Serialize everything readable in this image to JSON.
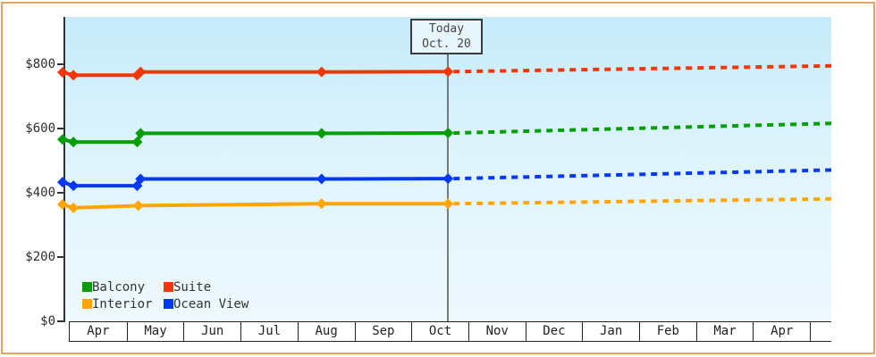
{
  "page": {
    "border_color": "#e2a55f",
    "background_color": "#ffffff",
    "plot_gradient_top": "#c6ebfa",
    "plot_gradient_bottom": "#edf9fe"
  },
  "today_marker": {
    "title": "Today",
    "date": "Oct. 20"
  },
  "chart_data": {
    "type": "line",
    "title": "",
    "description": "Cruise cabin price history by category with dotted price forecast after today",
    "unit": "USD",
    "x_axis": {
      "months": [
        "Apr",
        "May",
        "Jun",
        "Jul",
        "Aug",
        "Sep",
        "Oct",
        "Nov",
        "Dec",
        "Jan",
        "Feb",
        "Mar",
        "Apr"
      ],
      "note": "month_offset 0 = start of first Apr; axis spans 13 months plus a short trailing stub"
    },
    "y_axis": {
      "ticks": [
        {
          "label": "$0",
          "value": 0
        },
        {
          "label": "$200",
          "value": 200
        },
        {
          "label": "$400",
          "value": 400
        },
        {
          "label": "$600",
          "value": 600
        },
        {
          "label": "$800",
          "value": 800
        }
      ],
      "ylim": [
        0,
        947
      ],
      "grid": false
    },
    "today": {
      "month_offset": 6.66,
      "label_line1": "Today",
      "label_line2": "Oct. 20"
    },
    "series": [
      {
        "name": "Balcony",
        "color": "#069e06",
        "points": [
          [
            -0.11,
            566
          ],
          [
            0.08,
            558
          ],
          [
            1.2,
            558
          ],
          [
            1.26,
            585
          ],
          [
            4.44,
            585
          ],
          [
            6.66,
            586
          ]
        ],
        "forecast_end_value": 616
      },
      {
        "name": "Suite",
        "color": "#f23607",
        "points": [
          [
            -0.11,
            775
          ],
          [
            0.08,
            766
          ],
          [
            1.2,
            766
          ],
          [
            1.26,
            776
          ],
          [
            4.44,
            776
          ],
          [
            6.66,
            777
          ]
        ],
        "forecast_end_value": 795
      },
      {
        "name": "Interior",
        "color": "#ffa505",
        "points": [
          [
            -0.11,
            364
          ],
          [
            0.08,
            353
          ],
          [
            1.22,
            360
          ],
          [
            4.44,
            366
          ],
          [
            6.66,
            366
          ]
        ],
        "forecast_end_value": 381
      },
      {
        "name": "Ocean View",
        "color": "#0438f2",
        "points": [
          [
            -0.11,
            433
          ],
          [
            0.08,
            422
          ],
          [
            1.2,
            422
          ],
          [
            1.26,
            443
          ],
          [
            4.44,
            443
          ],
          [
            6.66,
            444
          ]
        ],
        "forecast_end_value": 471
      }
    ],
    "legend": {
      "position": "bottom-left",
      "rows": [
        [
          "Balcony",
          "Suite"
        ],
        [
          "Interior",
          "Ocean View"
        ]
      ]
    }
  }
}
